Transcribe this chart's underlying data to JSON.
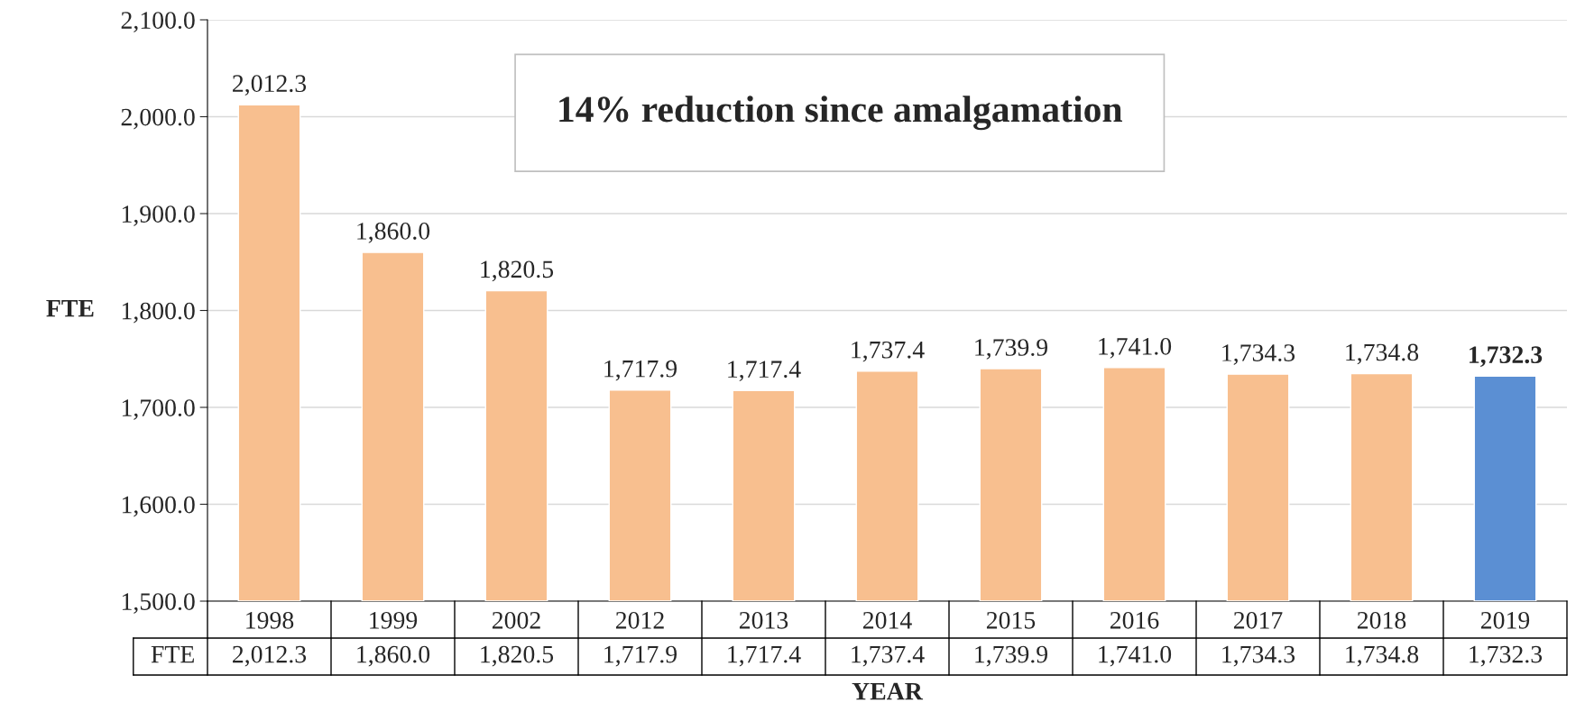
{
  "chart_data": {
    "type": "bar",
    "categories": [
      "1998",
      "1999",
      "2002",
      "2012",
      "2013",
      "2014",
      "2015",
      "2016",
      "2017",
      "2018",
      "2019"
    ],
    "series": [
      {
        "name": "FTE",
        "values": [
          2012.3,
          1860.0,
          1820.5,
          1717.9,
          1717.4,
          1737.4,
          1739.9,
          1741.0,
          1734.3,
          1734.8,
          1732.3
        ],
        "value_labels": [
          "2,012.3",
          "1,860.0",
          "1,820.5",
          "1,717.9",
          "1,717.4",
          "1,737.4",
          "1,739.9",
          "1,741.0",
          "1,734.3",
          "1,734.8",
          "1,732.3"
        ],
        "colors": [
          "#f8bf8f",
          "#f8bf8f",
          "#f8bf8f",
          "#f8bf8f",
          "#f8bf8f",
          "#f8bf8f",
          "#f8bf8f",
          "#f8bf8f",
          "#f8bf8f",
          "#f8bf8f",
          "#5b8fd3"
        ]
      }
    ],
    "ylabel": "FTE",
    "xlabel": "YEAR",
    "ylim": [
      1500,
      2100
    ],
    "yticks": [
      {
        "value": 1500,
        "label": "1,500.0"
      },
      {
        "value": 1600,
        "label": "1,600.0"
      },
      {
        "value": 1700,
        "label": "1,700.0"
      },
      {
        "value": 1800,
        "label": "1,800.0"
      },
      {
        "value": 1900,
        "label": "1,900.0"
      },
      {
        "value": 2000,
        "label": "2,000.0"
      },
      {
        "value": 2100,
        "label": "2,100.0"
      }
    ],
    "grid": "y",
    "annotations": [
      "14% reduction since amalgamation"
    ]
  }
}
